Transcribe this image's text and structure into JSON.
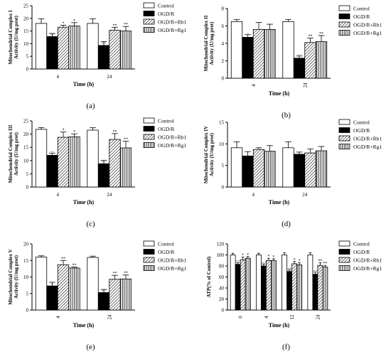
{
  "figure": {
    "legend_labels": [
      "Control",
      "OGD/R",
      "OGD/R+Rb1",
      "OGD/R+Rg1"
    ],
    "colors": {
      "control": "#ffffff",
      "ogdr": "#000000",
      "stroke": "#000000"
    }
  },
  "chart_data": [
    {
      "type": "bar",
      "panel_label": "(a)",
      "ylabel": "Mitochondrial Complex I Activity (U/mg prot)",
      "xlabel": "Time (h)",
      "categories": [
        "4",
        "24"
      ],
      "ylim": [
        0,
        25
      ],
      "yticks": [
        0,
        5,
        10,
        15,
        20,
        25
      ],
      "x_label_rotated": false,
      "series": [
        {
          "name": "Control",
          "pattern": "white",
          "values": [
            18,
            18
          ],
          "errors": [
            1.8,
            1.8
          ],
          "marks": [
            "",
            ""
          ]
        },
        {
          "name": "OGD/R",
          "pattern": "black",
          "values": [
            12.8,
            9.3
          ],
          "errors": [
            1.2,
            1.5
          ],
          "marks": [
            "##",
            "##"
          ]
        },
        {
          "name": "OGD/R+Rb1",
          "pattern": "diagonal",
          "values": [
            16.5,
            15.3
          ],
          "errors": [
            0.8,
            1.2
          ],
          "marks": [
            "*",
            "**"
          ]
        },
        {
          "name": "OGD/R+Rg1",
          "pattern": "vertical",
          "values": [
            17,
            15
          ],
          "errors": [
            1.3,
            1.8
          ],
          "marks": [
            "*",
            "**"
          ]
        }
      ],
      "legend": "top-right"
    },
    {
      "type": "bar",
      "panel_label": "(b)",
      "ylabel": "Mitochondrial Complex II Activity (U/mg prot)",
      "xlabel": "Time (h)",
      "categories": [
        "4",
        "24"
      ],
      "ylim": [
        0,
        8
      ],
      "yticks": [
        0,
        2,
        4,
        6,
        8
      ],
      "x_label_rotated": true,
      "series": [
        {
          "name": "Control",
          "pattern": "white",
          "values": [
            6.5,
            6.5
          ],
          "errors": [
            0.25,
            0.25
          ],
          "marks": [
            "",
            ""
          ]
        },
        {
          "name": "OGD/R",
          "pattern": "black",
          "values": [
            4.7,
            2.3
          ],
          "errors": [
            0.3,
            0.25
          ],
          "marks": [
            "#",
            "##"
          ]
        },
        {
          "name": "OGD/R+Rb1",
          "pattern": "diagonal",
          "values": [
            5.6,
            4.1
          ],
          "errors": [
            0.8,
            0.5
          ],
          "marks": [
            "",
            "**"
          ]
        },
        {
          "name": "OGD/R+Rg1",
          "pattern": "vertical",
          "values": [
            5.6,
            4.2
          ],
          "errors": [
            0.6,
            0.7
          ],
          "marks": [
            "",
            "**"
          ]
        }
      ],
      "legend": "top-right"
    },
    {
      "type": "bar",
      "panel_label": "(c)",
      "ylabel": "Mitochondrial Complex III Activity (U/mg prot)",
      "xlabel": "Time (h)",
      "categories": [
        "4",
        "24"
      ],
      "ylim": [
        0,
        25
      ],
      "yticks": [
        0,
        5,
        10,
        15,
        20,
        25
      ],
      "x_label_rotated": false,
      "series": [
        {
          "name": "Control",
          "pattern": "white",
          "values": [
            21.8,
            21.5
          ],
          "errors": [
            0.7,
            0.9
          ],
          "marks": [
            "",
            ""
          ]
        },
        {
          "name": "OGD/R",
          "pattern": "black",
          "values": [
            12,
            8.8
          ],
          "errors": [
            0.8,
            1.3
          ],
          "marks": [
            "##",
            "##"
          ]
        },
        {
          "name": "OGD/R+Rb1",
          "pattern": "diagonal",
          "values": [
            18.8,
            18
          ],
          "errors": [
            2,
            2.2
          ],
          "marks": [
            "*",
            "**"
          ]
        },
        {
          "name": "OGD/R+Rg1",
          "pattern": "vertical",
          "values": [
            19,
            14.8
          ],
          "errors": [
            1.1,
            2.5
          ],
          "marks": [
            "*",
            "**"
          ]
        }
      ],
      "legend": "top-right"
    },
    {
      "type": "bar",
      "panel_label": "(d)",
      "ylabel": "Mitochondrial Complex IV Activity (U/mg prot)",
      "xlabel": "Time (h)",
      "categories": [
        "4",
        "24"
      ],
      "ylim": [
        0,
        15
      ],
      "yticks": [
        0,
        5,
        10,
        15
      ],
      "x_label_rotated": false,
      "series": [
        {
          "name": "Control",
          "pattern": "white",
          "values": [
            9.1,
            9.1
          ],
          "errors": [
            1.4,
            1.4
          ],
          "marks": [
            "",
            ""
          ]
        },
        {
          "name": "OGD/R",
          "pattern": "black",
          "values": [
            7.2,
            7.6
          ],
          "errors": [
            1,
            0.5
          ],
          "marks": [
            "",
            ""
          ]
        },
        {
          "name": "OGD/R+Rb1",
          "pattern": "diagonal",
          "values": [
            8.7,
            7.9
          ],
          "errors": [
            0.4,
            0.9
          ],
          "marks": [
            "",
            ""
          ]
        },
        {
          "name": "OGD/R+Rg1",
          "pattern": "vertical",
          "values": [
            8.3,
            8.4
          ],
          "errors": [
            1.3,
            1
          ],
          "marks": [
            "",
            ""
          ]
        }
      ],
      "legend": "top-right"
    },
    {
      "type": "bar",
      "panel_label": "(e)",
      "ylabel": "Mitochondrial Complex V Activity (U/mg prot)",
      "xlabel": "Time (h)",
      "categories": [
        "4",
        "24"
      ],
      "ylim": [
        0,
        20
      ],
      "yticks": [
        0,
        5,
        10,
        15,
        20
      ],
      "x_label_rotated": true,
      "series": [
        {
          "name": "Control",
          "pattern": "white",
          "values": [
            16,
            15.9
          ],
          "errors": [
            0.4,
            0.4
          ],
          "marks": [
            "",
            ""
          ]
        },
        {
          "name": "OGD/R",
          "pattern": "black",
          "values": [
            7.3,
            5.3
          ],
          "errors": [
            1.1,
            0.9
          ],
          "marks": [
            "##",
            "##"
          ]
        },
        {
          "name": "OGD/R+Rb1",
          "pattern": "diagonal",
          "values": [
            13.7,
            9.3
          ],
          "errors": [
            1.3,
            1.2
          ],
          "marks": [
            "**",
            "**"
          ]
        },
        {
          "name": "OGD/R+Rg1",
          "pattern": "vertical",
          "values": [
            12.7,
            9.4
          ],
          "errors": [
            0.3,
            1.2
          ],
          "marks": [
            "**",
            "**"
          ]
        }
      ],
      "legend": "top-right"
    },
    {
      "type": "bar",
      "panel_label": "(f)",
      "ylabel": "ATP(% of Control)",
      "xlabel": "Time (h)",
      "categories": [
        "0",
        "4",
        "12",
        "24"
      ],
      "ylim": [
        0,
        120
      ],
      "yticks": [
        0,
        20,
        40,
        60,
        80,
        100,
        120
      ],
      "x_label_rotated": true,
      "series": [
        {
          "name": "Control",
          "pattern": "white",
          "values": [
            100,
            100,
            100,
            100
          ],
          "errors": [
            3,
            3,
            4,
            4
          ],
          "marks": [
            "",
            "",
            "",
            ""
          ]
        },
        {
          "name": "OGD/R",
          "pattern": "black",
          "values": [
            83,
            80,
            70,
            65
          ],
          "errors": [
            3,
            3,
            3,
            4
          ],
          "marks": [
            "##",
            "##",
            "##",
            "##"
          ]
        },
        {
          "name": "OGD/R+Rb1",
          "pattern": "diagonal",
          "values": [
            91,
            90,
            84,
            81
          ],
          "errors": [
            5,
            4,
            4,
            5
          ],
          "marks": [
            "*",
            "*",
            "*",
            "**"
          ]
        },
        {
          "name": "OGD/R+Rg1",
          "pattern": "vertical",
          "values": [
            94,
            90,
            82,
            78
          ],
          "errors": [
            3,
            3,
            4,
            3
          ],
          "marks": [
            "*",
            "*",
            "*",
            "**"
          ]
        }
      ],
      "legend": "top-right"
    }
  ]
}
